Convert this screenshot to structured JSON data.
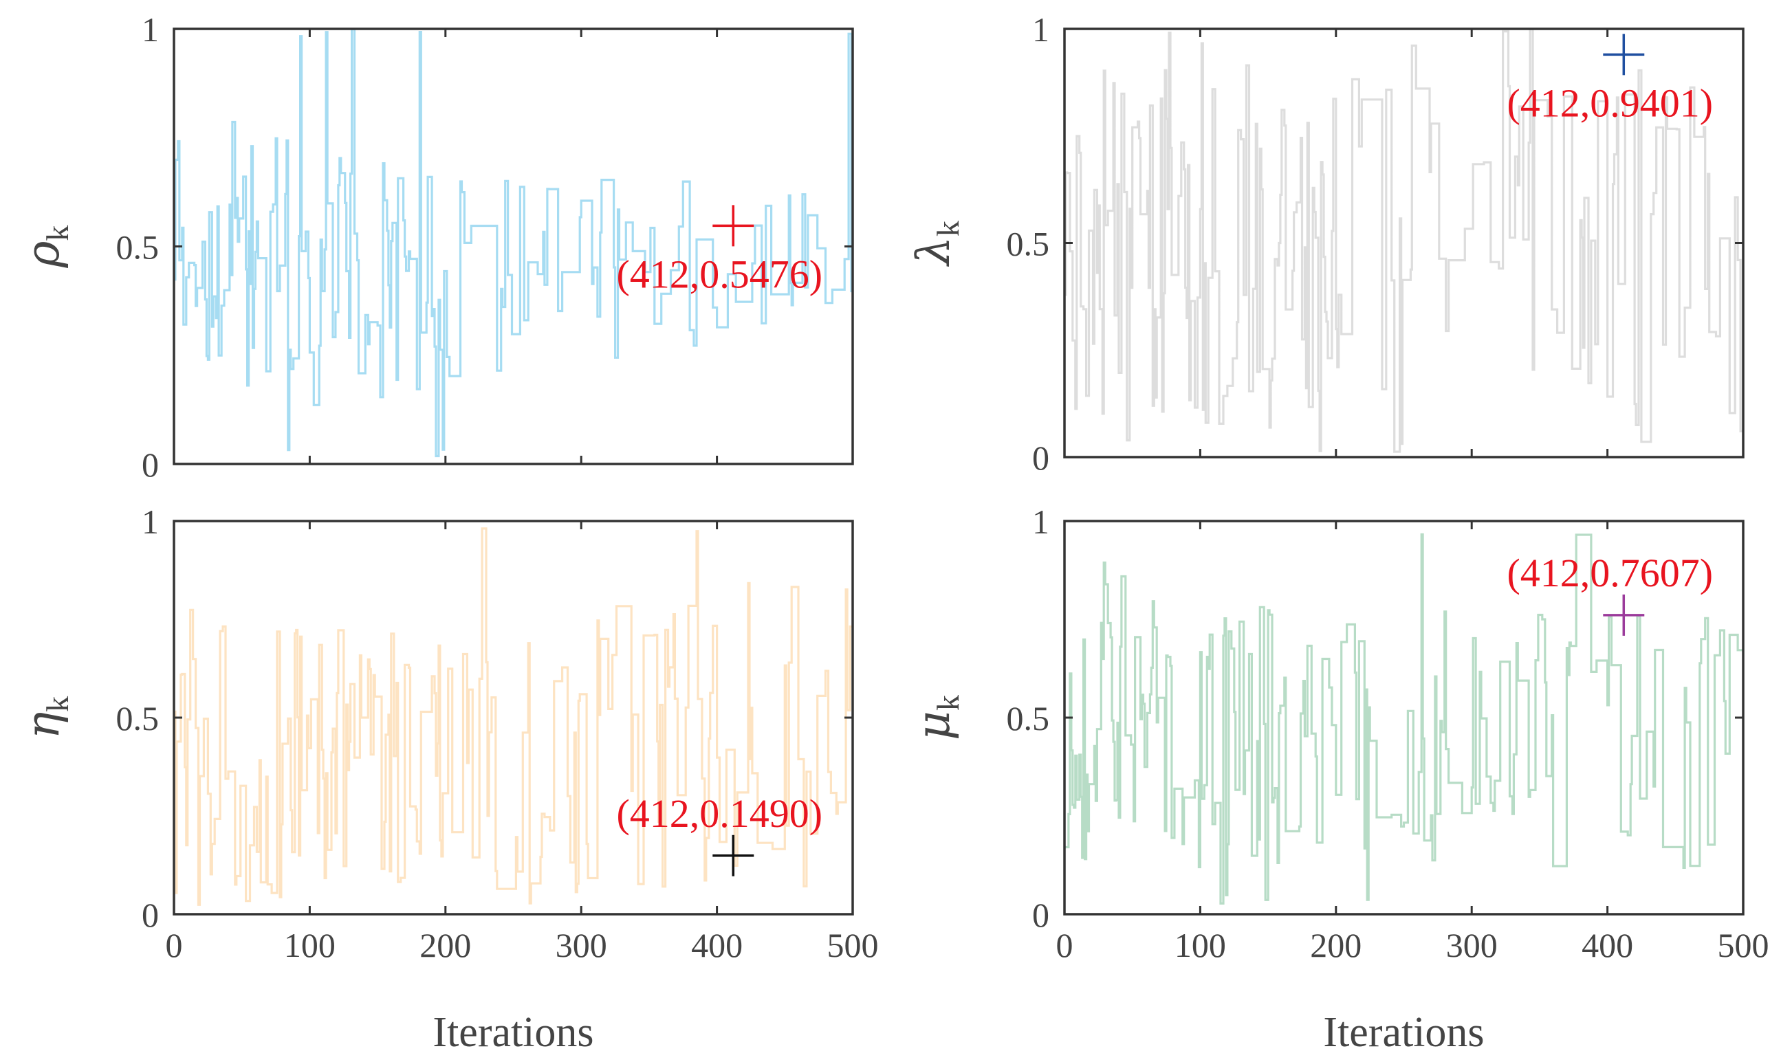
{
  "chart_data": [
    {
      "type": "line",
      "id": "rho",
      "ylabel_symbol": "ρ",
      "ylabel_sub": "k",
      "xlabel": "",
      "xlim": [
        0,
        500
      ],
      "ylim": [
        0,
        1
      ],
      "xticks": [
        "0",
        "100",
        "200",
        "300",
        "400",
        "500"
      ],
      "yticks": [
        "0",
        "0.5",
        "1"
      ],
      "show_xticklabels": false,
      "line_color": "#a6dcf2",
      "seed": 11,
      "profile": [
        [
          0,
          0.25,
          0.88
        ],
        [
          100,
          0.12,
          0.72
        ],
        [
          230,
          0.2,
          0.66
        ],
        [
          500,
          0.3,
          0.64
        ]
      ],
      "marker": {
        "x": 412,
        "y": 0.5476,
        "color": "#e8141f"
      },
      "annotation": {
        "text": "(412,0.5476)",
        "color": "#e8141f",
        "x": 412,
        "y": 0.5476,
        "position": "below"
      }
    },
    {
      "type": "line",
      "id": "lambda",
      "ylabel_symbol": "λ",
      "ylabel_sub": "k",
      "xlabel": "",
      "xlim": [
        0,
        500
      ],
      "ylim": [
        0,
        1
      ],
      "xticks": [
        "0",
        "100",
        "200",
        "300",
        "400",
        "500"
      ],
      "yticks": [
        "0",
        "0.5",
        "1"
      ],
      "show_xticklabels": false,
      "line_color": "#dddddd",
      "seed": 23,
      "profile": [
        [
          0,
          0.08,
          0.9
        ],
        [
          250,
          0.06,
          0.93
        ],
        [
          500,
          0.06,
          0.95
        ]
      ],
      "marker": {
        "x": 412,
        "y": 0.9401,
        "color": "#1f4fa0"
      },
      "annotation": {
        "text": "(412,0.9401)",
        "color": "#e8141f",
        "x": 412,
        "y": 0.9401,
        "position": "below"
      }
    },
    {
      "type": "line",
      "id": "eta",
      "ylabel_symbol": "η",
      "ylabel_sub": "k",
      "xlabel": "Iterations",
      "xlim": [
        0,
        500
      ],
      "ylim": [
        0,
        1
      ],
      "xticks": [
        "0",
        "100",
        "200",
        "300",
        "400",
        "500"
      ],
      "yticks": [
        "0",
        "0.5",
        "1"
      ],
      "show_xticklabels": true,
      "line_color": "#fde3c2",
      "seed": 37,
      "profile": [
        [
          0,
          0.02,
          0.8
        ],
        [
          200,
          0.05,
          0.7
        ],
        [
          500,
          0.05,
          0.9
        ]
      ],
      "marker": {
        "x": 412,
        "y": 0.149,
        "color": "#111111"
      },
      "annotation": {
        "text": "(412,0.1490)",
        "color": "#e8141f",
        "x": 412,
        "y": 0.149,
        "position": "above"
      }
    },
    {
      "type": "line",
      "id": "mu",
      "ylabel_symbol": "μ",
      "ylabel_sub": "k",
      "xlabel": "Iterations",
      "xlim": [
        0,
        500
      ],
      "ylim": [
        0,
        1
      ],
      "xticks": [
        "0",
        "100",
        "200",
        "300",
        "400",
        "500"
      ],
      "yticks": [
        "0",
        "0.5",
        "1"
      ],
      "show_xticklabels": true,
      "line_color": "#b7dcc6",
      "seed": 53,
      "profile": [
        [
          0,
          0.1,
          0.92
        ],
        [
          200,
          0.12,
          0.78
        ],
        [
          500,
          0.1,
          0.76
        ]
      ],
      "marker": {
        "x": 412,
        "y": 0.7607,
        "color": "#9b3b9b"
      },
      "annotation": {
        "text": "(412,0.7607)",
        "color": "#e8141f",
        "x": 412,
        "y": 0.7607,
        "position": "above"
      }
    }
  ]
}
